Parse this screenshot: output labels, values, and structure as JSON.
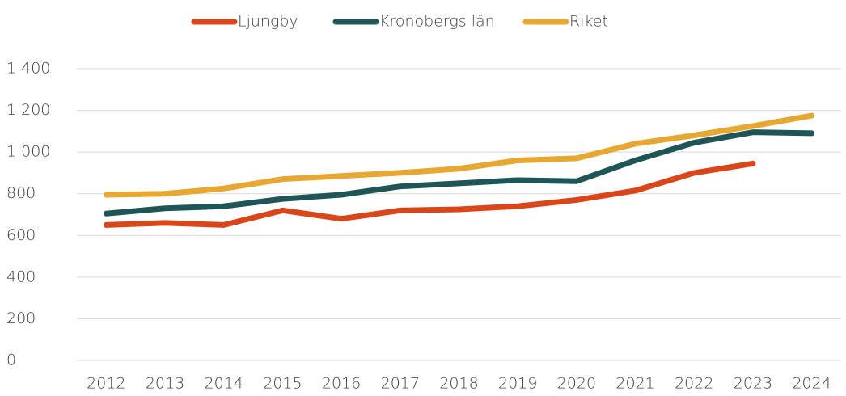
{
  "chart_data": {
    "type": "line",
    "categories": [
      "2012",
      "2013",
      "2014",
      "2015",
      "2016",
      "2017",
      "2018",
      "2019",
      "2020",
      "2021",
      "2022",
      "2023",
      "2024"
    ],
    "series": [
      {
        "name": "Ljungby",
        "color": "#d9461a",
        "values": [
          650,
          660,
          650,
          720,
          680,
          720,
          725,
          740,
          770,
          815,
          900,
          945,
          null
        ]
      },
      {
        "name": "Kronobergs län",
        "color": "#1f5556",
        "values": [
          705,
          730,
          740,
          775,
          795,
          835,
          850,
          865,
          860,
          960,
          1045,
          1095,
          1090
        ]
      },
      {
        "name": "Riket",
        "color": "#e6a832",
        "values": [
          795,
          800,
          825,
          870,
          885,
          900,
          920,
          960,
          970,
          1040,
          1080,
          1125,
          1175
        ]
      }
    ],
    "ylim": [
      0,
      1400
    ],
    "yticks": [
      0,
      200,
      400,
      600,
      800,
      {
        "value": 1000,
        "label": "1 000"
      },
      {
        "value": 1200,
        "label": "1 200"
      },
      {
        "value": 1400,
        "label": "1 400"
      }
    ],
    "grid": true,
    "legend": "top"
  }
}
